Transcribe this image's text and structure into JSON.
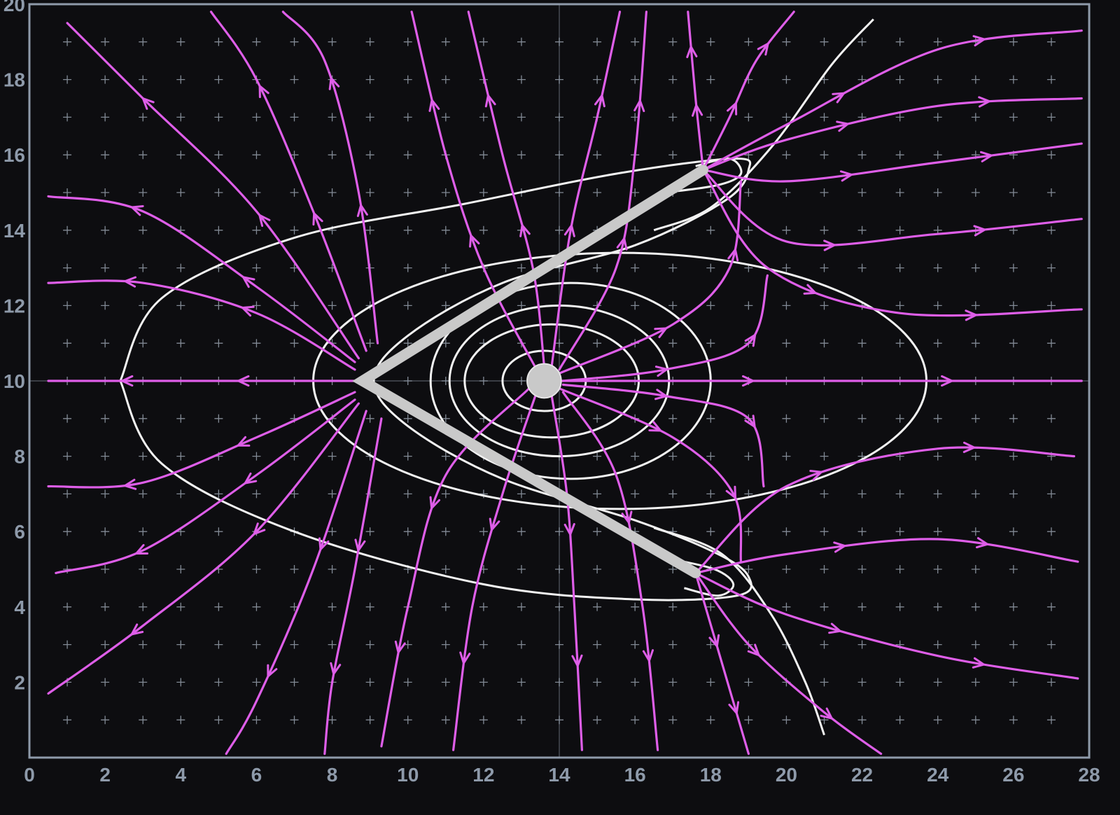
{
  "colors": {
    "background": "#0d0d10",
    "frame": "#8e9aaa",
    "grid_cross": "#aab4c2",
    "field_line": "#de5ee8",
    "equipotential": "#f2f2f2",
    "electrode": "#c9c9c9"
  },
  "axes": {
    "x_ticks": [
      "0",
      "2",
      "4",
      "6",
      "8",
      "10",
      "12",
      "14",
      "16",
      "18",
      "20",
      "22",
      "24",
      "26",
      "28"
    ],
    "y_ticks": [
      "2",
      "4",
      "6",
      "8",
      "10",
      "12",
      "14",
      "16",
      "18",
      "20"
    ],
    "x_range": [
      0,
      28
    ],
    "y_range": [
      0,
      20
    ]
  },
  "electrodes": {
    "v_shape": {
      "upper_tip": [
        17.8,
        15.6
      ],
      "vertex": [
        8.8,
        10.0
      ],
      "lower_tip": [
        17.6,
        4.9
      ]
    },
    "point_charge": {
      "center": [
        13.6,
        10.0
      ],
      "radius": 0.45
    }
  },
  "field_lines": [
    {
      "pts": [
        [
          8.8,
          10.0
        ],
        [
          5,
          10.0
        ],
        [
          0.5,
          10.0
        ]
      ]
    },
    {
      "pts": [
        [
          13.6,
          10.0
        ],
        [
          19,
          10.0
        ],
        [
          27.8,
          10.0
        ]
      ]
    },
    {
      "pts": [
        [
          8.6,
          10.3
        ],
        [
          6,
          11.8
        ],
        [
          3,
          12.6
        ],
        [
          0.5,
          12.6
        ]
      ]
    },
    {
      "pts": [
        [
          8.6,
          10.5
        ],
        [
          6,
          12.5
        ],
        [
          3,
          14.5
        ],
        [
          0.5,
          14.9
        ]
      ]
    },
    {
      "pts": [
        [
          8.7,
          10.6
        ],
        [
          6,
          14.5
        ],
        [
          3,
          17.5
        ],
        [
          1,
          19.5
        ]
      ]
    },
    {
      "pts": [
        [
          8.9,
          10.8
        ],
        [
          7.5,
          14.5
        ],
        [
          6,
          18
        ],
        [
          4.8,
          19.8
        ]
      ]
    },
    {
      "pts": [
        [
          9.2,
          11.0
        ],
        [
          8.7,
          15
        ],
        [
          7.8,
          18.5
        ],
        [
          6.7,
          19.8
        ]
      ]
    },
    {
      "pts": [
        [
          8.6,
          9.7
        ],
        [
          6,
          8.5
        ],
        [
          3,
          7.3
        ],
        [
          0.5,
          7.2
        ]
      ]
    },
    {
      "pts": [
        [
          8.6,
          9.5
        ],
        [
          6,
          7.5
        ],
        [
          3,
          5.5
        ],
        [
          0.7,
          4.9
        ]
      ]
    },
    {
      "pts": [
        [
          8.7,
          9.4
        ],
        [
          6,
          6
        ],
        [
          3,
          3.5
        ],
        [
          0.5,
          1.7
        ]
      ]
    },
    {
      "pts": [
        [
          8.9,
          9.2
        ],
        [
          7.5,
          5
        ],
        [
          6,
          1.5
        ],
        [
          5.2,
          0.1
        ]
      ]
    },
    {
      "pts": [
        [
          9.3,
          9.0
        ],
        [
          8.6,
          5
        ],
        [
          8,
          2
        ],
        [
          7.8,
          0.1
        ]
      ]
    },
    {
      "pts": [
        [
          17.8,
          15.6
        ],
        [
          20,
          16.8
        ],
        [
          24,
          18.8
        ],
        [
          27.8,
          19.3
        ]
      ]
    },
    {
      "pts": [
        [
          17.8,
          15.6
        ],
        [
          20,
          16.4
        ],
        [
          24,
          17.3
        ],
        [
          27.8,
          17.5
        ]
      ]
    },
    {
      "pts": [
        [
          17.8,
          15.6
        ],
        [
          20,
          15.3
        ],
        [
          24,
          15.8
        ],
        [
          27.8,
          16.3
        ]
      ]
    },
    {
      "pts": [
        [
          17.8,
          15.6
        ],
        [
          20,
          13.7
        ],
        [
          24,
          13.9
        ],
        [
          27.8,
          14.3
        ]
      ]
    },
    {
      "pts": [
        [
          17.8,
          15.6
        ],
        [
          19.5,
          13
        ],
        [
          23,
          11.8
        ],
        [
          27.8,
          11.9
        ]
      ]
    },
    {
      "pts": [
        [
          17.8,
          15.6
        ],
        [
          18.5,
          17
        ],
        [
          19.2,
          18.5
        ],
        [
          20.2,
          19.8
        ]
      ]
    },
    {
      "pts": [
        [
          17.8,
          15.6
        ],
        [
          17.6,
          17.5
        ],
        [
          17.4,
          19.8
        ]
      ]
    },
    {
      "pts": [
        [
          17.6,
          4.9
        ],
        [
          20,
          5.4
        ],
        [
          24,
          5.8
        ],
        [
          27.7,
          5.2
        ]
      ]
    },
    {
      "pts": [
        [
          17.6,
          4.9
        ],
        [
          20,
          3.8
        ],
        [
          24,
          2.7
        ],
        [
          27.7,
          2.1
        ]
      ]
    },
    {
      "pts": [
        [
          17.6,
          4.9
        ],
        [
          20,
          7.2
        ],
        [
          24,
          8.2
        ],
        [
          27.6,
          8.0
        ]
      ]
    },
    {
      "pts": [
        [
          17.6,
          4.9
        ],
        [
          19,
          3
        ],
        [
          21,
          1.2
        ],
        [
          22.5,
          0.1
        ]
      ]
    },
    {
      "pts": [
        [
          17.6,
          4.9
        ],
        [
          18.3,
          2.5
        ],
        [
          19,
          0.1
        ]
      ]
    },
    {
      "pts": [
        [
          13.6,
          10.4
        ],
        [
          13.3,
          13
        ],
        [
          12.5,
          16
        ],
        [
          11.6,
          19.8
        ]
      ]
    },
    {
      "pts": [
        [
          13.8,
          10.4
        ],
        [
          14.3,
          14
        ],
        [
          15,
          17
        ],
        [
          15.6,
          19.8
        ]
      ]
    },
    {
      "pts": [
        [
          13.4,
          10.3
        ],
        [
          12,
          13
        ],
        [
          11,
          16
        ],
        [
          10.1,
          19.8
        ]
      ]
    },
    {
      "pts": [
        [
          14.0,
          10.3
        ],
        [
          15.5,
          13
        ],
        [
          16,
          16
        ],
        [
          16.3,
          19.8
        ]
      ]
    },
    {
      "pts": [
        [
          13.4,
          9.7
        ],
        [
          12.5,
          7
        ],
        [
          11.7,
          4
        ],
        [
          11.2,
          0.2
        ]
      ]
    },
    {
      "pts": [
        [
          13.8,
          9.6
        ],
        [
          14.2,
          7
        ],
        [
          14.4,
          4
        ],
        [
          14.6,
          0.2
        ]
      ]
    },
    {
      "pts": [
        [
          13.2,
          9.8
        ],
        [
          11,
          7.5
        ],
        [
          10,
          4
        ],
        [
          9.3,
          0.3
        ]
      ]
    },
    {
      "pts": [
        [
          14.1,
          9.7
        ],
        [
          15.5,
          7.5
        ],
        [
          16.2,
          4
        ],
        [
          16.6,
          0.2
        ]
      ]
    },
    {
      "pts": [
        [
          14.0,
          10.2
        ],
        [
          17,
          11.5
        ],
        [
          18.5,
          13
        ],
        [
          18.8,
          15.3
        ]
      ]
    },
    {
      "pts": [
        [
          14.0,
          9.8
        ],
        [
          17,
          8.5
        ],
        [
          18.6,
          7
        ],
        [
          18.8,
          5.2
        ]
      ]
    },
    {
      "pts": [
        [
          14.1,
          10.0
        ],
        [
          16.8,
          10.3
        ],
        [
          19,
          11
        ],
        [
          19.5,
          12.8
        ]
      ]
    },
    {
      "pts": [
        [
          14.1,
          9.9
        ],
        [
          16.8,
          9.6
        ],
        [
          19,
          9
        ],
        [
          19.4,
          7.2
        ]
      ]
    }
  ],
  "equipotentials": [
    {
      "cx": 13.6,
      "cy": 10.0,
      "rx": 1.1,
      "ry": 0.8
    },
    {
      "cx": 13.8,
      "cy": 10.0,
      "rx": 2.3,
      "ry": 1.5
    },
    {
      "cx": 14.0,
      "cy": 10.0,
      "rx": 2.9,
      "ry": 2.0
    },
    {
      "cx": 14.3,
      "cy": 10.0,
      "rx": 3.7,
      "ry": 2.6
    },
    {
      "cx": 15.6,
      "cy": 10.0,
      "rx": 8.1,
      "ry": 3.4
    }
  ],
  "outer_contours": [
    {
      "pts": [
        [
          2.4,
          10
        ],
        [
          3.5,
          12.2
        ],
        [
          7,
          13.8
        ],
        [
          11.5,
          14.7
        ],
        [
          15.5,
          15.5
        ],
        [
          18.6,
          15.9
        ],
        [
          19,
          15.6
        ],
        [
          18.4,
          14.8
        ],
        [
          16,
          13.6
        ],
        [
          12.5,
          12.6
        ],
        [
          10,
          11.2
        ],
        [
          9.1,
          10.0
        ],
        [
          10,
          8.8
        ],
        [
          12.5,
          7.4
        ],
        [
          16,
          6.3
        ],
        [
          18.2,
          5.4
        ],
        [
          19,
          4.8
        ],
        [
          18.7,
          4.3
        ],
        [
          16,
          4.2
        ],
        [
          12,
          4.6
        ],
        [
          7,
          6
        ],
        [
          3.5,
          7.8
        ],
        [
          2.4,
          10
        ]
      ]
    },
    {
      "pts": [
        [
          16.5,
          14.0
        ],
        [
          18,
          14.6
        ],
        [
          19.6,
          16.2
        ],
        [
          21.2,
          18.4
        ],
        [
          22.3,
          19.6
        ]
      ]
    },
    {
      "pts": [
        [
          16.5,
          6.1
        ],
        [
          18.3,
          5.4
        ],
        [
          19.6,
          3.8
        ],
        [
          20.5,
          2.0
        ],
        [
          21.0,
          0.6
        ]
      ]
    },
    {
      "pts": [
        [
          16.8,
          15.0
        ],
        [
          18.2,
          15.2
        ],
        [
          18.8,
          15.5
        ],
        [
          18.5,
          15.9
        ],
        [
          17.6,
          15.7
        ]
      ]
    },
    {
      "pts": [
        [
          16.8,
          5.3
        ],
        [
          18.1,
          5.0
        ],
        [
          18.6,
          4.6
        ],
        [
          18.2,
          4.3
        ],
        [
          17.3,
          4.5
        ]
      ]
    }
  ]
}
